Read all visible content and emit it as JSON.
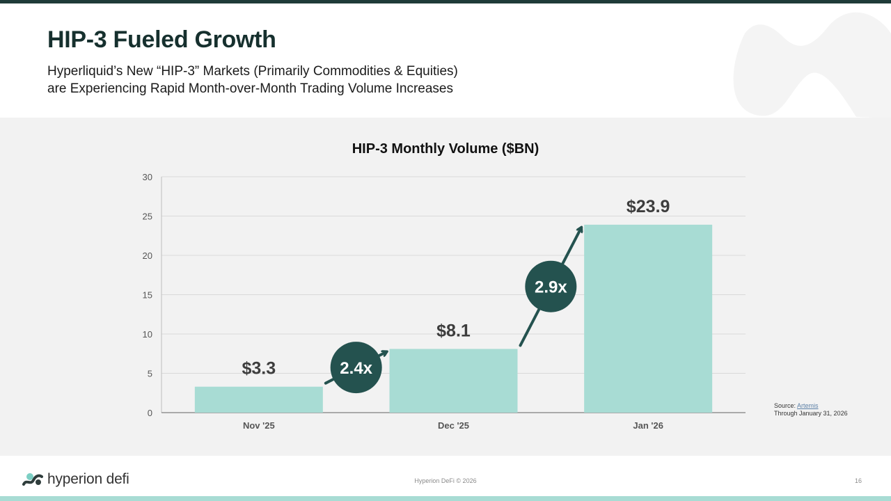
{
  "header": {
    "title": "HIP-3 Fueled Growth",
    "subtitle_line1": "Hyperliquid’s New “HIP-3” Markets (Primarily Commodities & Equities)",
    "subtitle_line2": "are Experiencing Rapid Month-over-Month Trading Volume Increases"
  },
  "chart_data": {
    "type": "bar",
    "title": "HIP-3 Monthly Volume ($BN)",
    "categories": [
      "Nov '25",
      "Dec '25",
      "Jan '26"
    ],
    "values": [
      3.3,
      8.1,
      23.9
    ],
    "data_labels": [
      "$3.3",
      "$8.1",
      "$23.9"
    ],
    "yticks": [
      0,
      5,
      10,
      15,
      20,
      25,
      30
    ],
    "ylim": [
      0,
      30
    ],
    "grid": true,
    "bar_color": "#a8dcd4",
    "annotations": [
      {
        "text": "2.4x",
        "from": 0,
        "to": 1
      },
      {
        "text": "2.9x",
        "from": 1,
        "to": 2
      }
    ],
    "annotation_color": "#24524f"
  },
  "source": {
    "prefix": "Source: ",
    "link": "Artemis",
    "note": "Through January 31, 2026"
  },
  "footer": {
    "logo_text": "hyperion defi",
    "logo_icon": "hyperion-logo-icon",
    "copyright": "Hyperion DeFi © 2026",
    "page_number": "16"
  }
}
